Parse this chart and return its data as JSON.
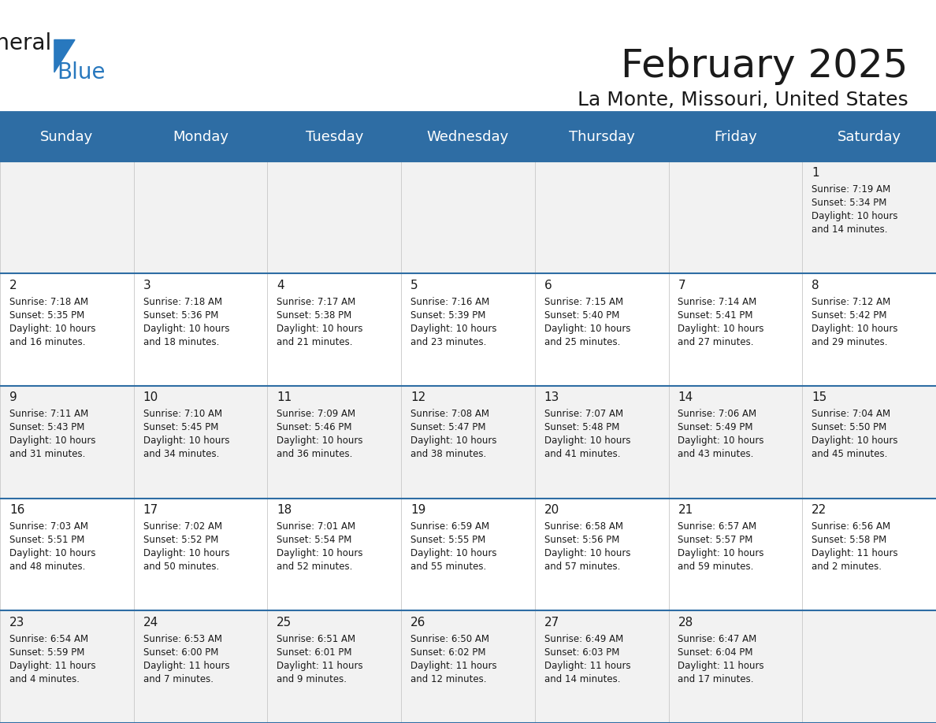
{
  "title": "February 2025",
  "subtitle": "La Monte, Missouri, United States",
  "header_color": "#2E6DA4",
  "header_text_color": "#FFFFFF",
  "cell_bg_color": "#F2F2F2",
  "cell_bg_color_alt": "#FFFFFF",
  "day_names": [
    "Sunday",
    "Monday",
    "Tuesday",
    "Wednesday",
    "Thursday",
    "Friday",
    "Saturday"
  ],
  "title_fontsize": 36,
  "subtitle_fontsize": 18,
  "day_header_fontsize": 13,
  "day_num_fontsize": 11,
  "cell_fontsize": 8.5,
  "logo_text1": "General",
  "logo_text2": "Blue",
  "logo_color1": "#1a1a1a",
  "logo_color2": "#2878BE",
  "logo_triangle_color": "#2878BE",
  "days": [
    {
      "date": 1,
      "col": 6,
      "row": 0,
      "sunrise": "7:19 AM",
      "sunset": "5:34 PM",
      "daylight": "10 hours and 14 minutes."
    },
    {
      "date": 2,
      "col": 0,
      "row": 1,
      "sunrise": "7:18 AM",
      "sunset": "5:35 PM",
      "daylight": "10 hours and 16 minutes."
    },
    {
      "date": 3,
      "col": 1,
      "row": 1,
      "sunrise": "7:18 AM",
      "sunset": "5:36 PM",
      "daylight": "10 hours and 18 minutes."
    },
    {
      "date": 4,
      "col": 2,
      "row": 1,
      "sunrise": "7:17 AM",
      "sunset": "5:38 PM",
      "daylight": "10 hours and 21 minutes."
    },
    {
      "date": 5,
      "col": 3,
      "row": 1,
      "sunrise": "7:16 AM",
      "sunset": "5:39 PM",
      "daylight": "10 hours and 23 minutes."
    },
    {
      "date": 6,
      "col": 4,
      "row": 1,
      "sunrise": "7:15 AM",
      "sunset": "5:40 PM",
      "daylight": "10 hours and 25 minutes."
    },
    {
      "date": 7,
      "col": 5,
      "row": 1,
      "sunrise": "7:14 AM",
      "sunset": "5:41 PM",
      "daylight": "10 hours and 27 minutes."
    },
    {
      "date": 8,
      "col": 6,
      "row": 1,
      "sunrise": "7:12 AM",
      "sunset": "5:42 PM",
      "daylight": "10 hours and 29 minutes."
    },
    {
      "date": 9,
      "col": 0,
      "row": 2,
      "sunrise": "7:11 AM",
      "sunset": "5:43 PM",
      "daylight": "10 hours and 31 minutes."
    },
    {
      "date": 10,
      "col": 1,
      "row": 2,
      "sunrise": "7:10 AM",
      "sunset": "5:45 PM",
      "daylight": "10 hours and 34 minutes."
    },
    {
      "date": 11,
      "col": 2,
      "row": 2,
      "sunrise": "7:09 AM",
      "sunset": "5:46 PM",
      "daylight": "10 hours and 36 minutes."
    },
    {
      "date": 12,
      "col": 3,
      "row": 2,
      "sunrise": "7:08 AM",
      "sunset": "5:47 PM",
      "daylight": "10 hours and 38 minutes."
    },
    {
      "date": 13,
      "col": 4,
      "row": 2,
      "sunrise": "7:07 AM",
      "sunset": "5:48 PM",
      "daylight": "10 hours and 41 minutes."
    },
    {
      "date": 14,
      "col": 5,
      "row": 2,
      "sunrise": "7:06 AM",
      "sunset": "5:49 PM",
      "daylight": "10 hours and 43 minutes."
    },
    {
      "date": 15,
      "col": 6,
      "row": 2,
      "sunrise": "7:04 AM",
      "sunset": "5:50 PM",
      "daylight": "10 hours and 45 minutes."
    },
    {
      "date": 16,
      "col": 0,
      "row": 3,
      "sunrise": "7:03 AM",
      "sunset": "5:51 PM",
      "daylight": "10 hours and 48 minutes."
    },
    {
      "date": 17,
      "col": 1,
      "row": 3,
      "sunrise": "7:02 AM",
      "sunset": "5:52 PM",
      "daylight": "10 hours and 50 minutes."
    },
    {
      "date": 18,
      "col": 2,
      "row": 3,
      "sunrise": "7:01 AM",
      "sunset": "5:54 PM",
      "daylight": "10 hours and 52 minutes."
    },
    {
      "date": 19,
      "col": 3,
      "row": 3,
      "sunrise": "6:59 AM",
      "sunset": "5:55 PM",
      "daylight": "10 hours and 55 minutes."
    },
    {
      "date": 20,
      "col": 4,
      "row": 3,
      "sunrise": "6:58 AM",
      "sunset": "5:56 PM",
      "daylight": "10 hours and 57 minutes."
    },
    {
      "date": 21,
      "col": 5,
      "row": 3,
      "sunrise": "6:57 AM",
      "sunset": "5:57 PM",
      "daylight": "10 hours and 59 minutes."
    },
    {
      "date": 22,
      "col": 6,
      "row": 3,
      "sunrise": "6:56 AM",
      "sunset": "5:58 PM",
      "daylight": "11 hours and 2 minutes."
    },
    {
      "date": 23,
      "col": 0,
      "row": 4,
      "sunrise": "6:54 AM",
      "sunset": "5:59 PM",
      "daylight": "11 hours and 4 minutes."
    },
    {
      "date": 24,
      "col": 1,
      "row": 4,
      "sunrise": "6:53 AM",
      "sunset": "6:00 PM",
      "daylight": "11 hours and 7 minutes."
    },
    {
      "date": 25,
      "col": 2,
      "row": 4,
      "sunrise": "6:51 AM",
      "sunset": "6:01 PM",
      "daylight": "11 hours and 9 minutes."
    },
    {
      "date": 26,
      "col": 3,
      "row": 4,
      "sunrise": "6:50 AM",
      "sunset": "6:02 PM",
      "daylight": "11 hours and 12 minutes."
    },
    {
      "date": 27,
      "col": 4,
      "row": 4,
      "sunrise": "6:49 AM",
      "sunset": "6:03 PM",
      "daylight": "11 hours and 14 minutes."
    },
    {
      "date": 28,
      "col": 5,
      "row": 4,
      "sunrise": "6:47 AM",
      "sunset": "6:04 PM",
      "daylight": "11 hours and 17 minutes."
    }
  ]
}
